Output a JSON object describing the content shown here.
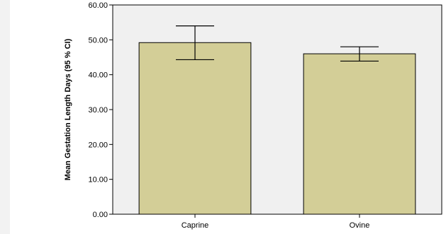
{
  "chart_data": {
    "type": "bar",
    "title": "",
    "xlabel": "",
    "ylabel": "Mean Gestation Length Days (95 % CI)",
    "ylim": [
      0,
      60
    ],
    "yticks": [
      0,
      10,
      20,
      30,
      40,
      50,
      60
    ],
    "ytick_labels": [
      "0.00",
      "10.00",
      "20.00",
      "30.00",
      "40.00",
      "50.00",
      "60.00"
    ],
    "categories": [
      "Caprine",
      "Ovine"
    ],
    "values": [
      49.2,
      46.0
    ],
    "ci_lower": [
      44.3,
      43.9
    ],
    "ci_upper": [
      54.0,
      48.0
    ],
    "grid": false,
    "colors": {
      "bar_fill": "#d3ce97",
      "plot_background": "#f0f0f0",
      "page_background": "#ffffff"
    }
  }
}
